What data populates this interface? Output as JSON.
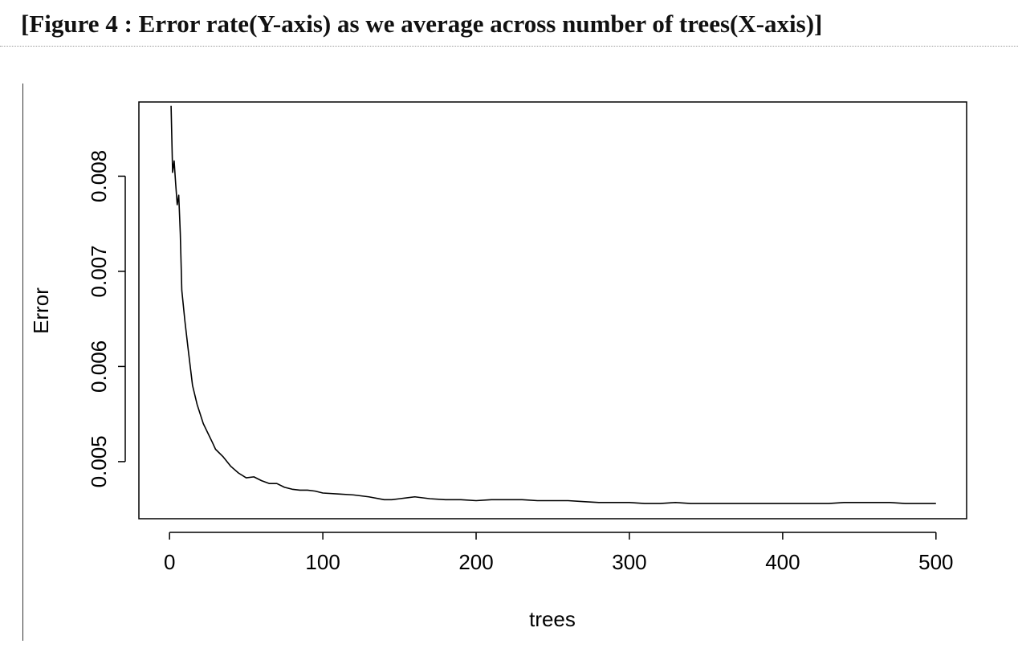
{
  "caption": {
    "text": "[Figure 4 : Error rate(Y-axis) as we average across number of trees(X-axis)]"
  },
  "chart_data": {
    "type": "line",
    "title": "",
    "xlabel": "trees",
    "ylabel": "Error",
    "xlim": [
      -20,
      520
    ],
    "ylim": [
      0.0044,
      0.00878
    ],
    "xticks": [
      0,
      100,
      200,
      300,
      400,
      500
    ],
    "xtick_labels": [
      "0",
      "100",
      "200",
      "300",
      "400",
      "500"
    ],
    "yticks": [
      0.005,
      0.006,
      0.007,
      0.008
    ],
    "ytick_labels": [
      "0.005",
      "0.006",
      "0.007",
      "0.008"
    ],
    "grid": false,
    "legend": "none",
    "line_color": "#000000",
    "series": [
      {
        "x": [
          1,
          2,
          3,
          4,
          5,
          6,
          7,
          8,
          10,
          12,
          15,
          18,
          20,
          22,
          25,
          28,
          30,
          35,
          40,
          45,
          50,
          55,
          60,
          65,
          70,
          75,
          80,
          85,
          90,
          95,
          100,
          110,
          120,
          130,
          140,
          145,
          150,
          160,
          170,
          180,
          190,
          200,
          210,
          220,
          230,
          240,
          250,
          260,
          270,
          280,
          290,
          300,
          310,
          320,
          330,
          340,
          350,
          360,
          370,
          380,
          390,
          400,
          410,
          420,
          430,
          440,
          450,
          460,
          470,
          480,
          490,
          500
        ],
        "y": [
          0.00874,
          0.00804,
          0.00816,
          0.00792,
          0.0077,
          0.0078,
          0.0074,
          0.0068,
          0.00648,
          0.0062,
          0.0058,
          0.0056,
          0.0055,
          0.0054,
          0.0053,
          0.0052,
          0.00513,
          0.00505,
          0.00495,
          0.00488,
          0.00483,
          0.00484,
          0.0048,
          0.00477,
          0.00477,
          0.00473,
          0.00471,
          0.0047,
          0.0047,
          0.00469,
          0.00467,
          0.00466,
          0.00465,
          0.00463,
          0.0046,
          0.0046,
          0.00461,
          0.00463,
          0.00461,
          0.0046,
          0.0046,
          0.00459,
          0.0046,
          0.0046,
          0.0046,
          0.00459,
          0.00459,
          0.00459,
          0.00458,
          0.00457,
          0.00457,
          0.00457,
          0.00456,
          0.00456,
          0.00457,
          0.00456,
          0.00456,
          0.00456,
          0.00456,
          0.00456,
          0.00456,
          0.00456,
          0.00456,
          0.00456,
          0.00456,
          0.00457,
          0.00457,
          0.00457,
          0.00457,
          0.00456,
          0.00456,
          0.00456
        ]
      }
    ]
  }
}
